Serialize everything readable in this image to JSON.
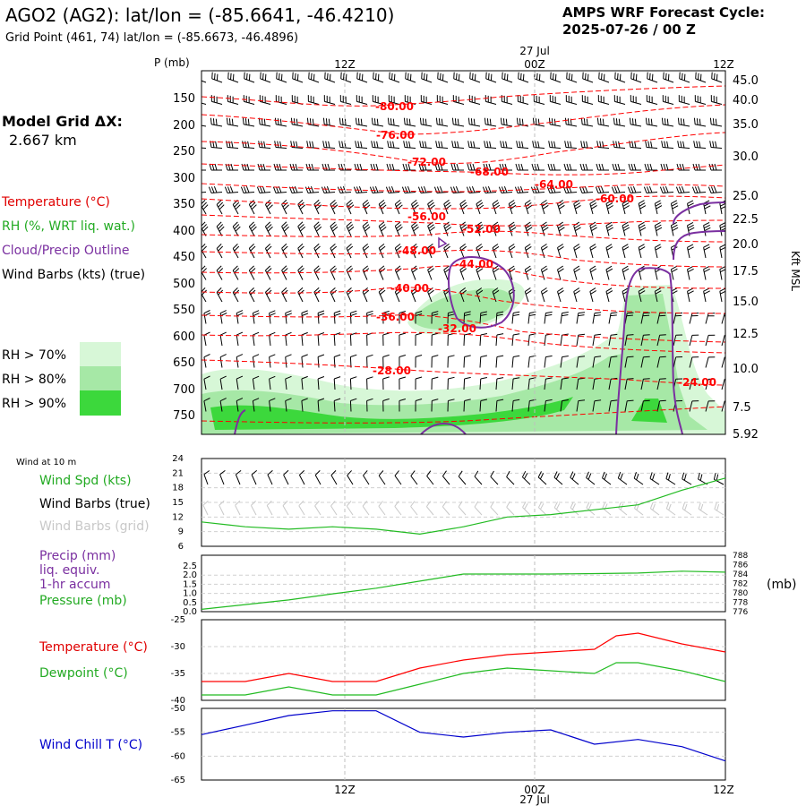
{
  "header": {
    "title": "AGO2 (AG2):  lat/lon = (-85.6641, -46.4210)",
    "subtitle": "Grid Point (461, 74) lat/lon = (-85.6673, -46.4896)",
    "forecast_label": "AMPS WRF Forecast Cycle:",
    "forecast_cycle": "2025-07-26 / 00  Z"
  },
  "time_axis": {
    "top_labels": [
      "12Z",
      "00Z",
      "12Z"
    ],
    "date_label": "27  Jul",
    "bottom_labels": [
      "12Z",
      "00Z",
      "12Z"
    ]
  },
  "model_grid": {
    "label": "Model Grid ΔX:",
    "value": "2.667 km"
  },
  "legend_upper": {
    "temperature": "Temperature (°C)",
    "rh": "RH (%, WRT liq. wat.)",
    "cloud": "Cloud/Precip Outline",
    "wind": "Wind Barbs (kts) (true)",
    "rh_levels": [
      "RH > 70%",
      "RH > 80%",
      "RH > 90%"
    ]
  },
  "colors": {
    "temperature": "#ff0000",
    "rh": "#22bb22",
    "cloud": "#7a2fa0",
    "wind_true": "#000000",
    "wind_grid": "#c8c8c8",
    "precip": "#7a2fa0",
    "pressure": "#22bb22",
    "wind_chill": "#0000cc",
    "rh70": "#d7f7d7",
    "rh80": "#a6e8a6",
    "rh90": "#3cd83c"
  },
  "upper_panel": {
    "pressure_label": "P (mb)",
    "pressure_ticks": [
      "150",
      "200",
      "250",
      "300",
      "350",
      "400",
      "450",
      "500",
      "550",
      "600",
      "650",
      "700",
      "750"
    ],
    "height_ticks": [
      "45.0",
      "40.0",
      "35.0",
      "30.0",
      "25.0",
      "22.5",
      "20.0",
      "17.5",
      "15.0",
      "12.5",
      "10.0",
      "7.5",
      "5.92"
    ],
    "height_axis_label": "Kft MSL",
    "temperature_labels": [
      "-80.00",
      "-76.00",
      "-72.00",
      "-68.00",
      "-64.00",
      "-60.00",
      "-56.00",
      "-52.00",
      "-48.00",
      "-44.00",
      "-40.00",
      "-36.00",
      "-32.00",
      "-28.00",
      "-24.00"
    ]
  },
  "wind_panel": {
    "header": "Wind at 10 m",
    "series_labels": [
      "Wind Spd (kts)",
      "Wind Barbs (true)",
      "Wind Barbs (grid)"
    ],
    "y_ticks": [
      "24",
      "21",
      "18",
      "15",
      "12",
      "9",
      "6"
    ]
  },
  "precip_panel": {
    "labels": [
      "Precip (mm)",
      "liq. equiv.",
      "1-hr accum",
      "Pressure (mb)"
    ],
    "left_ticks": [
      "2.5",
      "2.0",
      "1.5",
      "1.0",
      "0.5",
      "0.0"
    ],
    "right_ticks": [
      "788",
      "786",
      "784",
      "782",
      "780",
      "778",
      "776"
    ],
    "right_unit": "(mb)"
  },
  "temp_panel": {
    "labels": [
      "Temperature (°C)",
      "Dewpoint (°C)"
    ],
    "y_ticks": [
      "-25",
      "-30",
      "-35",
      "-40"
    ]
  },
  "chill_panel": {
    "label": "Wind Chill T (°C)",
    "y_ticks": [
      "-50",
      "-55",
      "-60",
      "-65"
    ]
  },
  "chart_data": [
    {
      "type": "line",
      "panel": "wind_10m",
      "x": [
        0,
        3,
        6,
        9,
        12,
        15,
        18,
        21,
        24,
        27,
        30,
        33,
        36
      ],
      "series": [
        {
          "name": "Wind Spd (kts)",
          "values": [
            11,
            10,
            9.5,
            10,
            9.5,
            8.5,
            10,
            12,
            12.5,
            13.5,
            14.5,
            17.5,
            20
          ]
        }
      ],
      "ylim": [
        6,
        24
      ]
    },
    {
      "type": "line",
      "panel": "pressure",
      "x": [
        0,
        3,
        6,
        9,
        12,
        15,
        18,
        21,
        24,
        27,
        30,
        33,
        36
      ],
      "series": [
        {
          "name": "Pressure (mb)",
          "values": [
            776.5,
            777.5,
            778.5,
            779.8,
            781,
            782.5,
            784,
            784,
            784,
            784.1,
            784.2,
            784.6,
            784.4
          ]
        }
      ],
      "ylim": [
        776,
        788
      ]
    },
    {
      "type": "line",
      "panel": "temperature",
      "x": [
        0,
        3,
        6,
        9,
        12,
        15,
        18,
        21,
        24,
        27,
        28.5,
        30,
        33,
        36
      ],
      "series": [
        {
          "name": "Temperature (°C)",
          "values": [
            -36.5,
            -36.5,
            -35,
            -36.5,
            -36.5,
            -34,
            -32.5,
            -31.5,
            -31,
            -30.5,
            -28,
            -27.5,
            -29.5,
            -31
          ]
        },
        {
          "name": "Dewpoint (°C)",
          "values": [
            -39,
            -39,
            -37.5,
            -39,
            -39,
            -37,
            -35,
            -34,
            -34.5,
            -35,
            -33,
            -33,
            -34.5,
            -36.5
          ]
        }
      ],
      "ylim": [
        -40,
        -25
      ]
    },
    {
      "type": "line",
      "panel": "wind_chill",
      "x": [
        0,
        3,
        6,
        9,
        12,
        15,
        18,
        21,
        24,
        27,
        30,
        33,
        36
      ],
      "series": [
        {
          "name": "Wind Chill T (°C)",
          "values": [
            -55.5,
            -53.5,
            -51.5,
            -50.5,
            -50.5,
            -55,
            -56,
            -55,
            -54.5,
            -57.5,
            -56.5,
            -58,
            -61
          ]
        }
      ],
      "ylim": [
        -65,
        -50
      ]
    }
  ]
}
